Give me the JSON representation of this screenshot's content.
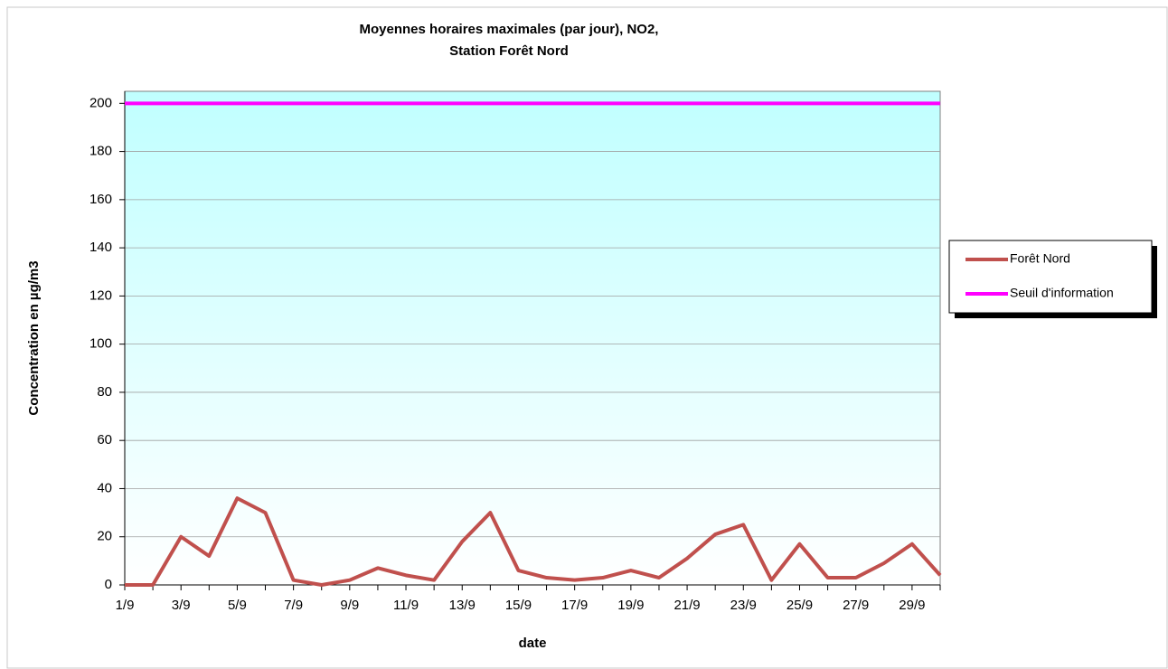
{
  "chart_data": {
    "type": "line",
    "title": [
      "Moyennes horaires maximales (par jour), NO2,",
      "Station Forêt Nord"
    ],
    "x_label": "date",
    "y_label": "Concentration en µg/m3",
    "categories": [
      "1/9",
      null,
      "3/9",
      null,
      "5/9",
      null,
      "7/9",
      null,
      "9/9",
      null,
      "11/9",
      null,
      "13/9",
      null,
      "15/9",
      null,
      "17/9",
      null,
      "19/9",
      null,
      "21/9",
      null,
      "23/9",
      null,
      "25/9",
      null,
      "27/9",
      null,
      "29/9",
      null
    ],
    "series": [
      {
        "name": "Forêt Nord",
        "color": "#c0504d",
        "values": [
          0,
          0,
          20,
          12,
          36,
          30,
          2,
          0,
          2,
          7,
          4,
          2,
          18,
          30,
          6,
          3,
          2,
          3,
          6,
          3,
          11,
          21,
          25,
          2,
          17,
          3,
          3,
          9,
          17,
          4
        ]
      },
      {
        "name": "Seuil d'information",
        "color": "#ff00ff",
        "values": [
          200,
          200,
          200,
          200,
          200,
          200,
          200,
          200,
          200,
          200,
          200,
          200,
          200,
          200,
          200,
          200,
          200,
          200,
          200,
          200,
          200,
          200,
          200,
          200,
          200,
          200,
          200,
          200,
          200,
          200
        ]
      }
    ],
    "ylim": [
      0,
      205
    ],
    "yticks": [
      0,
      20,
      40,
      60,
      80,
      100,
      120,
      140,
      160,
      180,
      200
    ],
    "grid": true,
    "legend": "right"
  }
}
